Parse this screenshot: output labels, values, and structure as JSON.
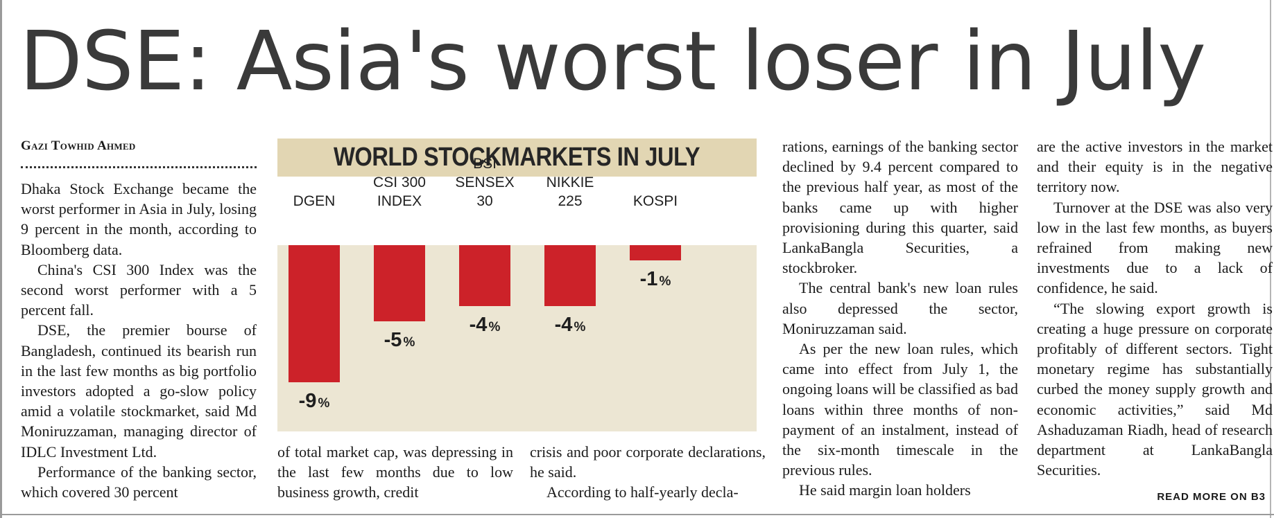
{
  "headline": "DSE: Asia's worst loser in July",
  "byline": "Gazi Towhid Ahmed",
  "columns": {
    "col1": [
      "Dhaka Stock Exchange became the worst performer in Asia in July, losing 9 percent in the month, according to Bloomberg data.",
      "China's CSI 300 Index was the second worst performer with a 5 percent fall.",
      "DSE, the premier bourse of Bangladesh, continued its bearish run in the last few months as big portfolio investors adopted a go-slow policy amid a volatile stockmarket, said Md Moniruzzaman, managing director of IDLC Investment Ltd.",
      "Performance of the banking sector, which covered 30 percent"
    ],
    "col2": [
      "of total market cap, was depressing in the last few months due to low business growth, credit"
    ],
    "col3": [
      "crisis and poor corporate declarations, he said.",
      "According to half-yearly decla-"
    ],
    "col4": [
      "rations, earnings of the banking sector declined by 9.4 percent compared to the previous half year, as most of the banks came up with higher provisioning during this quarter, said LankaBangla Securities, a stockbroker.",
      "The central bank's new loan rules also depressed the sector, Moniruzzaman said.",
      "As per the new loan rules, which came into effect from July 1, the ongoing loans will be classified as bad loans within three months of non-payment of an instalment, instead of the six-month timescale in the previous rules.",
      "He said margin loan holders"
    ],
    "col5": [
      "are the active investors in the market and their equity is in the negative territory now.",
      "Turnover at the DSE was also very low in the last few months, as buyers refrained from making new investments due to a lack of confidence, he said.",
      "“The slowing export growth is creating a huge pressure on corporate profitably of different sectors. Tight monetary regime has substantially curbed the money supply growth and economic activities,” said Md Ashaduzaman Riadh, head of research department at LankaBangla Securities."
    ]
  },
  "read_more": "READ MORE ON B3",
  "chart_data": {
    "type": "bar",
    "title": "WORLD STOCKMARKETS IN JULY",
    "categories": [
      [
        "DGEN"
      ],
      [
        "CSI 300",
        "INDEX"
      ],
      [
        "BSI",
        "SENSEX",
        "30"
      ],
      [
        "NIKKIE",
        "225"
      ],
      [
        "KOSPI"
      ]
    ],
    "values": [
      -9,
      -5,
      -4,
      -4,
      -1
    ],
    "value_labels": [
      "-9",
      "-5",
      "-4",
      "-4",
      "-1"
    ],
    "unit": "%",
    "ylim": [
      -10,
      0
    ],
    "colors": {
      "bar": "#cc2229",
      "panel": "#ece6d3",
      "title_band": "#e2d6b3"
    }
  }
}
